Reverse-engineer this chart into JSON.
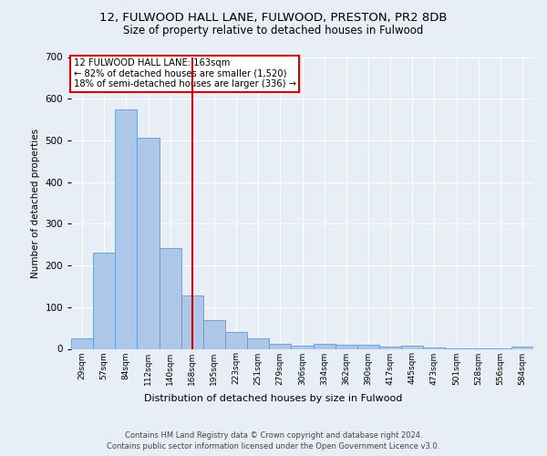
{
  "title1": "12, FULWOOD HALL LANE, FULWOOD, PRESTON, PR2 8DB",
  "title2": "Size of property relative to detached houses in Fulwood",
  "xlabel": "Distribution of detached houses by size in Fulwood",
  "ylabel": "Number of detached properties",
  "categories": [
    "29sqm",
    "57sqm",
    "84sqm",
    "112sqm",
    "140sqm",
    "168sqm",
    "195sqm",
    "223sqm",
    "251sqm",
    "279sqm",
    "306sqm",
    "334sqm",
    "362sqm",
    "390sqm",
    "417sqm",
    "445sqm",
    "473sqm",
    "501sqm",
    "528sqm",
    "556sqm",
    "584sqm"
  ],
  "values": [
    25,
    230,
    575,
    507,
    242,
    127,
    70,
    40,
    25,
    13,
    8,
    11,
    10,
    10,
    5,
    8,
    3,
    2,
    2,
    2,
    6
  ],
  "bar_color": "#aec6e8",
  "bar_edge_color": "#5b9bd5",
  "vline_x": 5,
  "vline_color": "#cc0000",
  "annotation_line1": "12 FULWOOD HALL LANE: 163sqm",
  "annotation_line2": "← 82% of detached houses are smaller (1,520)",
  "annotation_line3": "18% of semi-detached houses are larger (336) →",
  "annotation_box_color": "white",
  "annotation_box_edge_color": "#cc0000",
  "ylim": [
    0,
    700
  ],
  "yticks": [
    0,
    100,
    200,
    300,
    400,
    500,
    600,
    700
  ],
  "footer1": "Contains HM Land Registry data © Crown copyright and database right 2024.",
  "footer2": "Contains public sector information licensed under the Open Government Licence v3.0.",
  "background_color": "#e8eef5",
  "plot_background": "#e8eef5"
}
